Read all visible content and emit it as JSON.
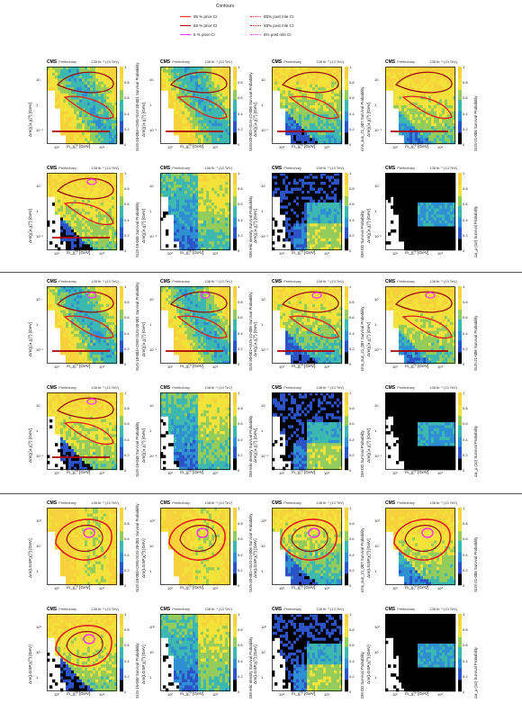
{
  "legend": {
    "title": "Contours",
    "items": [
      {
        "label": "95 % prior CI",
        "color": "#ff2b2b",
        "style": "solid"
      },
      {
        "label": "68 % prior CI",
        "color": "#b00000",
        "style": "solid"
      },
      {
        "label": "5 % prior CI",
        "color": "#ff33ff",
        "style": "solid"
      },
      {
        "label": "95% post mle CI",
        "color": "#ff2b2b",
        "style": "dotted"
      },
      {
        "label": "68% post mle CI",
        "color": "#b00000",
        "style": "dotted"
      },
      {
        "label": "5% post mle CI",
        "color": "#ff33ff",
        "style": "dotted"
      }
    ]
  },
  "common": {
    "cms": "CMS",
    "prelim": "Preliminary",
    "lumi": "138 fb⁻¹ (13 TeV)",
    "xlabel": "m_χ̃₁⁰ [GeV]",
    "cb_ticks": [
      "0",
      "0.2",
      "0.4",
      "0.6",
      "0.8",
      "1"
    ]
  },
  "groups": [
    {
      "ylabel": "Δm(χ̃₁±,χ̃₁⁰) [GeV]",
      "xticks": [
        "10²",
        "10³"
      ],
      "yticks": [
        "10⁻¹",
        "1",
        "10"
      ],
      "panels": [
        {
          "cb": "SUS-18-004+CMS-SUS-20-001 Survival Probability"
        },
        {
          "cb": "SUS-20-001+SUS-21-008 Survival Probability"
        },
        {
          "cb": "cms_sus_21_007 Survival Probability"
        },
        {
          "cb": "SUS-21-006 Survival Probability"
        },
        {
          "cb": "SUS-16-048 Survival Probability"
        },
        {
          "cb": "DM relic density Survival Probability"
        },
        {
          "cb": "DM DD Survival Probability"
        },
        {
          "cb": "Δa_μ (1σ) Survival Probability"
        }
      ]
    },
    {
      "ylabel": "Δm(χ̃₁±,χ̃₁⁰) [GeV]",
      "xticks": [
        "10²",
        "10³"
      ],
      "yticks": [
        "10⁻¹",
        "1",
        "10"
      ],
      "panels": [
        {
          "cb": "SUS-18-004+CMS-SUS-20-001 Survival Probability"
        },
        {
          "cb": "SUS-20-001+SUS-21-008 Survival Probability"
        },
        {
          "cb": "cms_sus_21_007 Survival Probability"
        },
        {
          "cb": "SUS-21-006 Survival Probability"
        },
        {
          "cb": "SUS-16-048 Survival Probability"
        },
        {
          "cb": "DM relic density Survival Probability"
        },
        {
          "cb": "DM DD Survival Probability"
        },
        {
          "cb": "Δa_μ (1σ) Survival Probability"
        }
      ]
    },
    {
      "ylabel": "Δm(LGSP,χ̃₁⁰) [GeV]",
      "xticks": [
        "10²",
        "10³"
      ],
      "yticks": [
        "1",
        "10",
        "10²"
      ],
      "panels": [
        {
          "cb": "SUS-18-004+CMS-SUS-20-001 Survival Probability"
        },
        {
          "cb": "SUS-20-001+SUS-21-008 Survival Probability"
        },
        {
          "cb": "cms_sus_21_007 Survival Probability"
        },
        {
          "cb": "SUS-21-006 Survival Probability"
        },
        {
          "cb": "SUS-16-048 Survival Probability"
        },
        {
          "cb": "DM relic density Survival Probability"
        },
        {
          "cb": "DM DD Survival Probability"
        },
        {
          "cb": "Δa_μ (1σ) Survival Probability"
        }
      ]
    }
  ],
  "chart_data": {
    "type": "heatmap",
    "description_of_grid": "3 groups x 8 panels of survival-probability heatmaps with contour overlays",
    "colorscale": [
      "#000000",
      "#2b53c7",
      "#2f8fd3",
      "#3db8b0",
      "#93cc5a",
      "#f2e23a",
      "#f7d23a"
    ],
    "zlim": [
      0,
      1
    ],
    "xscale": "log",
    "yscale": "log"
  }
}
